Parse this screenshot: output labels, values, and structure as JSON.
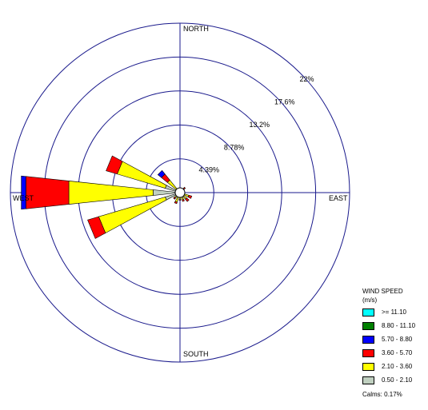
{
  "chart_data": {
    "type": "wind-rose",
    "directions_deg": [
      0,
      22.5,
      45,
      67.5,
      90,
      112.5,
      135,
      157.5,
      180,
      202.5,
      225,
      247.5,
      270,
      292.5,
      315,
      337.5
    ],
    "compass_labels": {
      "north": "NORTH",
      "east": "EAST",
      "south": "SOUTH",
      "west": "WEST"
    },
    "ring_values": [
      4.39,
      8.78,
      13.2,
      17.6,
      22
    ],
    "ring_labels": [
      "4.39%",
      "8.78%",
      "13.2%",
      "17.6%",
      "22%"
    ],
    "speed_bins": [
      {
        "label": "0.50 - 2.10",
        "color": "#c0d0c0"
      },
      {
        "label": "2.10 - 3.60",
        "color": "#ffff00"
      },
      {
        "label": "3.60 - 5.70",
        "color": "#ff0000"
      },
      {
        "label": "5.70 - 8.80",
        "color": "#0000ff"
      },
      {
        "label": "8.80 - 11.10",
        "color": "#008000"
      },
      {
        "label": ">= 11.10",
        "color": "#00ffff"
      }
    ],
    "frequencies_pct": [
      [
        0.2,
        0.3,
        0.1,
        0,
        0,
        0
      ],
      [
        0.2,
        0.3,
        0.1,
        0,
        0,
        0
      ],
      [
        0.2,
        0.5,
        0.2,
        0,
        0,
        0
      ],
      [
        0.2,
        0.3,
        0.1,
        0,
        0,
        0
      ],
      [
        0.2,
        0.3,
        0.1,
        0,
        0,
        0
      ],
      [
        0.3,
        0.9,
        0.4,
        0,
        0,
        0
      ],
      [
        0.3,
        0.8,
        0.4,
        0,
        0,
        0
      ],
      [
        0.2,
        0.8,
        0.2,
        0,
        0,
        0
      ],
      [
        0.2,
        0.7,
        0.1,
        0,
        0,
        0
      ],
      [
        0.3,
        1.0,
        0.2,
        0,
        0,
        0
      ],
      [
        0.3,
        0.6,
        0.2,
        0,
        0,
        0
      ],
      [
        2.0,
        9.0,
        1.5,
        0,
        0,
        0
      ],
      [
        3.5,
        11.0,
        5.6,
        0.6,
        0,
        0
      ],
      [
        2.0,
        6.5,
        1.5,
        0,
        0,
        0
      ],
      [
        0.6,
        1.5,
        1.0,
        0.6,
        0,
        0
      ],
      [
        0.2,
        0.3,
        0.1,
        0,
        0,
        0
      ]
    ]
  },
  "legend": {
    "title_line1": "WIND SPEED",
    "title_line2": "(m/s)",
    "rows": [
      {
        "label": ">= 11.10",
        "color": "#00ffff"
      },
      {
        "label": "8.80 - 11.10",
        "color": "#008000"
      },
      {
        "label": "5.70 - 8.80",
        "color": "#0000ff"
      },
      {
        "label": "3.60 - 5.70",
        "color": "#ff0000"
      },
      {
        "label": "2.10 - 3.60",
        "color": "#ffff00"
      },
      {
        "label": "0.50 - 2.10",
        "color": "#c0d0c0"
      }
    ],
    "calms": "Calms: 0.17%"
  }
}
